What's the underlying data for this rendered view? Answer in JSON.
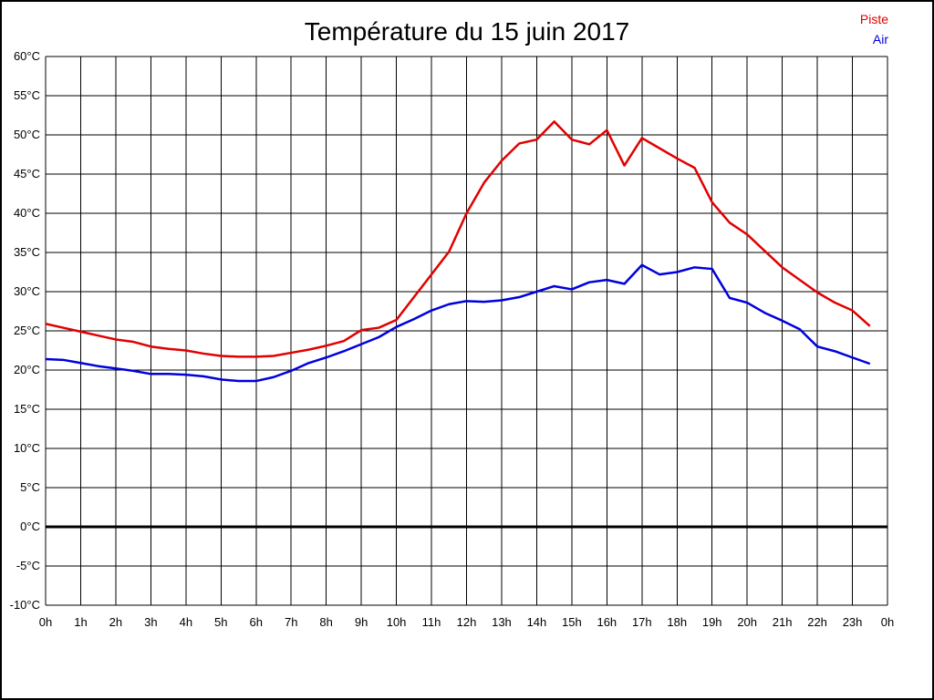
{
  "chart_data": {
    "type": "line",
    "title": "Température du 15 juin 2017",
    "xlabel": "",
    "ylabel": "",
    "xlim": [
      0,
      24
    ],
    "ylim": [
      -10,
      60
    ],
    "grid": true,
    "grid_color": "#000000",
    "zero_line_value": 0,
    "legend_position": "top-right",
    "x_tick_labels": [
      "0h",
      "1h",
      "2h",
      "3h",
      "4h",
      "5h",
      "6h",
      "7h",
      "8h",
      "9h",
      "10h",
      "11h",
      "12h",
      "13h",
      "14h",
      "15h",
      "16h",
      "17h",
      "18h",
      "19h",
      "20h",
      "21h",
      "22h",
      "23h",
      "0h"
    ],
    "y_ticks": [
      60,
      55,
      50,
      45,
      40,
      35,
      30,
      25,
      20,
      15,
      10,
      5,
      0,
      -5,
      -10
    ],
    "y_tick_labels": [
      "60°C",
      "55°C",
      "50°C",
      "45°C",
      "40°C",
      "35°C",
      "30°C",
      "25°C",
      "20°C",
      "15°C",
      "10°C",
      "5°C",
      "0°C",
      "-5°C",
      "-10°C"
    ],
    "x_start_hours": 0,
    "x_step_hours": 0.5,
    "series": [
      {
        "name": "Piste",
        "color": "#e00000",
        "values": [
          25.9,
          25.4,
          24.9,
          24.4,
          23.9,
          23.6,
          23.0,
          22.7,
          22.5,
          22.1,
          21.8,
          21.7,
          21.7,
          21.8,
          22.2,
          22.6,
          23.1,
          23.7,
          25.1,
          25.4,
          26.4,
          29.3,
          32.2,
          35.1,
          40.0,
          43.9,
          46.7,
          48.9,
          49.4,
          51.7,
          49.4,
          48.8,
          50.6,
          46.1,
          49.6,
          48.3,
          47.0,
          45.8,
          41.4,
          38.8,
          37.3,
          35.2,
          33.1,
          31.5,
          29.9,
          28.6,
          27.6,
          25.6
        ]
      },
      {
        "name": "Air",
        "color": "#0000dd",
        "values": [
          21.4,
          21.3,
          20.9,
          20.5,
          20.2,
          19.9,
          19.5,
          19.5,
          19.4,
          19.2,
          18.8,
          18.6,
          18.6,
          19.1,
          19.9,
          20.9,
          21.6,
          22.4,
          23.3,
          24.2,
          25.5,
          26.5,
          27.6,
          28.4,
          28.8,
          28.7,
          28.9,
          29.3,
          30.0,
          30.7,
          30.3,
          31.2,
          31.5,
          31.0,
          33.4,
          32.2,
          32.5,
          33.1,
          32.9,
          29.2,
          28.6,
          27.3,
          26.3,
          25.2,
          23.0,
          22.4,
          21.6,
          20.8
        ]
      }
    ]
  }
}
